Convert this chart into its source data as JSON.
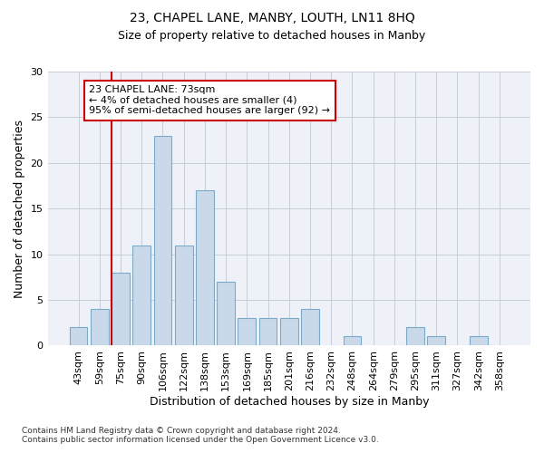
{
  "title1": "23, CHAPEL LANE, MANBY, LOUTH, LN11 8HQ",
  "title2": "Size of property relative to detached houses in Manby",
  "xlabel": "Distribution of detached houses by size in Manby",
  "ylabel": "Number of detached properties",
  "bar_labels": [
    "43sqm",
    "59sqm",
    "75sqm",
    "90sqm",
    "106sqm",
    "122sqm",
    "138sqm",
    "153sqm",
    "169sqm",
    "185sqm",
    "201sqm",
    "216sqm",
    "232sqm",
    "248sqm",
    "264sqm",
    "279sqm",
    "295sqm",
    "311sqm",
    "327sqm",
    "342sqm",
    "358sqm"
  ],
  "bar_values": [
    2,
    4,
    8,
    11,
    23,
    11,
    17,
    7,
    3,
    3,
    3,
    4,
    0,
    1,
    0,
    0,
    2,
    1,
    0,
    1,
    0
  ],
  "bar_color": "#c9d9ea",
  "bar_edge_color": "#7aaac8",
  "annotation_text": "23 CHAPEL LANE: 73sqm\n← 4% of detached houses are smaller (4)\n95% of semi-detached houses are larger (92) →",
  "vline_color": "#cc0000",
  "annotation_box_edge_color": "#cc0000",
  "ylim": [
    0,
    30
  ],
  "yticks": [
    0,
    5,
    10,
    15,
    20,
    25,
    30
  ],
  "footnote": "Contains HM Land Registry data © Crown copyright and database right 2024.\nContains public sector information licensed under the Open Government Licence v3.0.",
  "bg_color": "#eef2f8",
  "grid_color": "#c8ccd8"
}
